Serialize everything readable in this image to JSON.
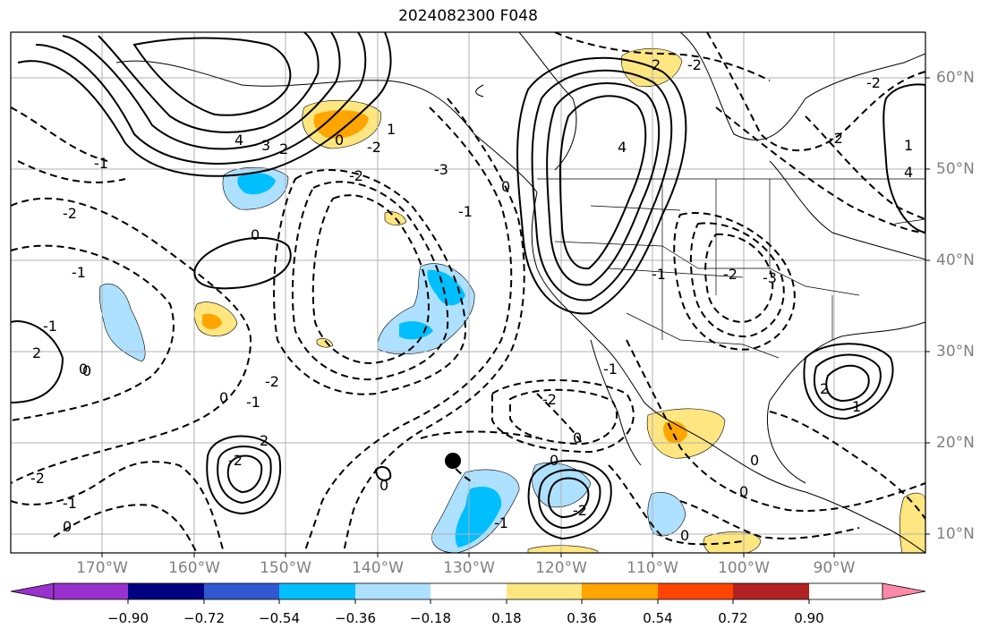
{
  "title": "2024082300 F048",
  "lat_labels": [
    "60°N",
    "50°N",
    "40°N",
    "30°N",
    "20°N",
    "10°N"
  ],
  "lon_labels": [
    "170°W",
    "160°W",
    "150°W",
    "140°W",
    "130°W",
    "120°W",
    "110°W",
    "100°W",
    "90°W"
  ],
  "colorbar": {
    "colors": [
      "#9932cc",
      "#000080",
      "#3258d0",
      "#00bfff",
      "#aee0ff",
      "#ffffff",
      "#ffe680",
      "#ffa500",
      "#ff4500",
      "#b22222",
      "#ff88aa"
    ],
    "ticks": [
      "−0.90",
      "−0.72",
      "−0.54",
      "−0.36",
      "−0.18",
      "0.18",
      "0.36",
      "0.54",
      "0.72",
      "0.90"
    ]
  },
  "contour_labels": [
    "4",
    "3",
    "2",
    "1",
    "0",
    "0",
    "-1",
    "-2",
    "-1",
    "-1",
    "2",
    "0",
    "-1",
    "0",
    "-2",
    "-2",
    "-2",
    "2",
    "-1",
    "0",
    "-2",
    "-1",
    "-2",
    "-3",
    "4",
    "-2",
    "-1",
    "-3",
    "-2",
    "2",
    "1",
    "-2",
    "4",
    "1",
    "2",
    "0",
    "0",
    "0",
    "0",
    "-2",
    "-1",
    "0",
    "0",
    "0",
    "0",
    "-2",
    "-2",
    "-1"
  ]
}
